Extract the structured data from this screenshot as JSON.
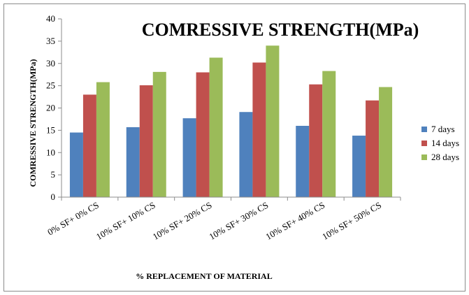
{
  "chart_data": {
    "type": "bar",
    "title": "COMRESSIVE STRENGTH(MPa)",
    "xlabel": "% REPLACEMENT OF MATERIAL",
    "ylabel": "COMRESSIVE STRENGTH(MPa)",
    "ylim": [
      0,
      40
    ],
    "yticks": [
      0,
      5,
      10,
      15,
      20,
      25,
      30,
      35,
      40
    ],
    "grid": false,
    "legend_position": "right",
    "categories": [
      "0% SF+ 0% CS",
      "10% SF+ 10% CS",
      "10% SF+ 20% CS",
      "10% SF+ 30% CS",
      "10% SF+ 40% CS",
      "10% SF+ 50% CS"
    ],
    "series": [
      {
        "name": "7 days",
        "color": "#4f81bd",
        "values": [
          14.5,
          15.7,
          17.7,
          19.1,
          16.0,
          13.8
        ]
      },
      {
        "name": "14 days",
        "color": "#c0504d",
        "values": [
          23.0,
          25.1,
          28.0,
          30.2,
          25.3,
          21.7
        ]
      },
      {
        "name": "28 days",
        "color": "#9bbb59",
        "values": [
          25.8,
          28.1,
          31.3,
          34.0,
          28.3,
          24.7
        ]
      }
    ]
  }
}
